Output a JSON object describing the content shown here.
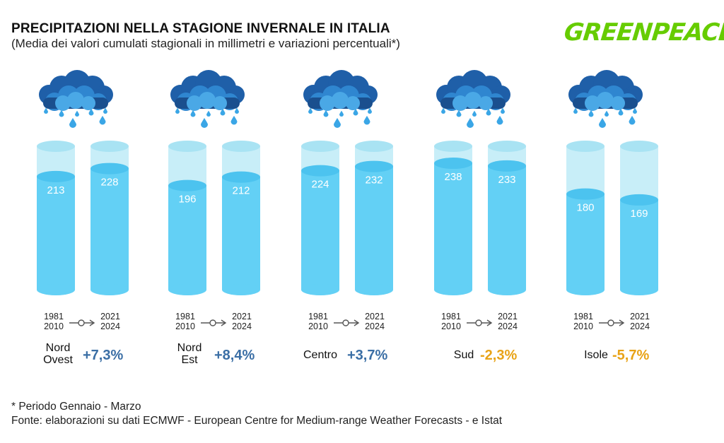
{
  "header": {
    "title": "PRECIPITAZIONI NELLA STAGIONE INVERNALE IN ITALIA",
    "subtitle": "(Media dei valori cumulati stagionali in millimetri e variazioni percentuali*)",
    "logo": "GREENPEACE"
  },
  "chart_data": {
    "type": "bar",
    "categories": [
      "Nord Ovest",
      "Nord Est",
      "Centro",
      "Sud",
      "Isole"
    ],
    "category_lines": [
      [
        "Nord",
        "Ovest"
      ],
      [
        "Nord",
        "Est"
      ],
      [
        "Centro"
      ],
      [
        "Sud"
      ],
      [
        "Isole"
      ]
    ],
    "period_labels": [
      [
        "1981",
        "2010"
      ],
      [
        "2021",
        "2024"
      ]
    ],
    "series": [
      {
        "name": "1981-2010",
        "values": [
          213,
          196,
          224,
          238,
          180
        ]
      },
      {
        "name": "2021-2024",
        "values": [
          228,
          212,
          232,
          233,
          169
        ]
      }
    ],
    "changes": [
      "+7,3%",
      "+8,4%",
      "+3,7%",
      "-2,3%",
      "-5,7%"
    ],
    "ylim": [
      0,
      270
    ],
    "colors": {
      "positive": "#3a6ea5",
      "negative": "#e8a317",
      "fill": "#63d0f5",
      "tube": "#c8eef8",
      "tube_top": "#a9e3f3"
    }
  },
  "footer": {
    "note": "* Periodo Gennaio - Marzo",
    "source": "Fonte: elaborazioni su dati ECMWF - European Centre for Medium-range Weather Forecasts - e Istat"
  }
}
